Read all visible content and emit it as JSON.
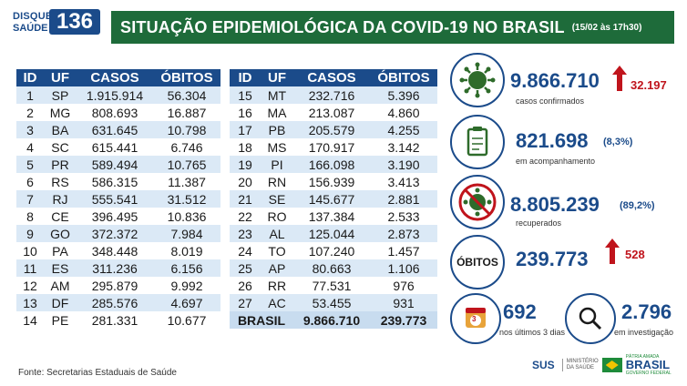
{
  "header": {
    "logo_line1": "DISQUE",
    "logo_line2": "SAÚDE",
    "logo_number": "136",
    "title": "SITUAÇÃO EPIDEMIOLÓGICA DA COVID-19 NO BRASIL",
    "date": "(15/02 às 17h30)"
  },
  "table_headers": [
    "ID",
    "UF",
    "CASOS",
    "ÓBITOS"
  ],
  "left_rows": [
    [
      "1",
      "SP",
      "1.915.914",
      "56.304"
    ],
    [
      "2",
      "MG",
      "808.693",
      "16.887"
    ],
    [
      "3",
      "BA",
      "631.645",
      "10.798"
    ],
    [
      "4",
      "SC",
      "615.441",
      "6.746"
    ],
    [
      "5",
      "PR",
      "589.494",
      "10.765"
    ],
    [
      "6",
      "RS",
      "586.315",
      "11.387"
    ],
    [
      "7",
      "RJ",
      "555.541",
      "31.512"
    ],
    [
      "8",
      "CE",
      "396.495",
      "10.836"
    ],
    [
      "9",
      "GO",
      "372.372",
      "7.984"
    ],
    [
      "10",
      "PA",
      "348.448",
      "8.019"
    ],
    [
      "11",
      "ES",
      "311.236",
      "6.156"
    ],
    [
      "12",
      "AM",
      "295.879",
      "9.992"
    ],
    [
      "13",
      "DF",
      "285.576",
      "4.697"
    ],
    [
      "14",
      "PE",
      "281.331",
      "10.677"
    ]
  ],
  "right_rows": [
    [
      "15",
      "MT",
      "232.716",
      "5.396"
    ],
    [
      "16",
      "MA",
      "213.087",
      "4.860"
    ],
    [
      "17",
      "PB",
      "205.579",
      "4.255"
    ],
    [
      "18",
      "MS",
      "170.917",
      "3.142"
    ],
    [
      "19",
      "PI",
      "166.098",
      "3.190"
    ],
    [
      "20",
      "RN",
      "156.939",
      "3.413"
    ],
    [
      "21",
      "SE",
      "145.677",
      "2.881"
    ],
    [
      "22",
      "RO",
      "137.384",
      "2.533"
    ],
    [
      "23",
      "AL",
      "125.044",
      "2.873"
    ],
    [
      "24",
      "TO",
      "107.240",
      "1.457"
    ],
    [
      "25",
      "AP",
      "80.663",
      "1.106"
    ],
    [
      "26",
      "RR",
      "77.531",
      "976"
    ],
    [
      "27",
      "AC",
      "53.455",
      "931"
    ]
  ],
  "brasil_total": {
    "label": "BRASIL",
    "casos": "9.866.710",
    "obitos": "239.773"
  },
  "stats": {
    "confirmed": {
      "value": "9.866.710",
      "increase": "32.197",
      "caption": "casos confirmados"
    },
    "monitoring": {
      "value": "821.698",
      "pct": "(8,3%)",
      "caption": "em acompanhamento"
    },
    "recovered": {
      "value": "8.805.239",
      "pct": "(89,2%)",
      "caption": "recuperados"
    },
    "deaths": {
      "label": "ÓBITOS",
      "value": "239.773",
      "increase": "528"
    },
    "last3": {
      "value": "692",
      "caption": "nos últimos 3 dias",
      "badge": "3"
    },
    "investigation": {
      "value": "2.796",
      "caption": "em investigação"
    }
  },
  "source": "Fonte: Secretarias Estaduais de Saúde",
  "footer": {
    "sus": "SUS",
    "ministry": "MINISTÉRIO DA SAÚDE",
    "brasil_top": "PÁTRIA AMADA",
    "brasil": "BRASIL",
    "brasil_sub": "GOVERNO FEDERAL"
  },
  "colors": {
    "title_green": "#1e6b3a",
    "primary_blue": "#1b4b8a",
    "row_alt": "#dbe9f6",
    "alert_red": "#c0141c"
  }
}
